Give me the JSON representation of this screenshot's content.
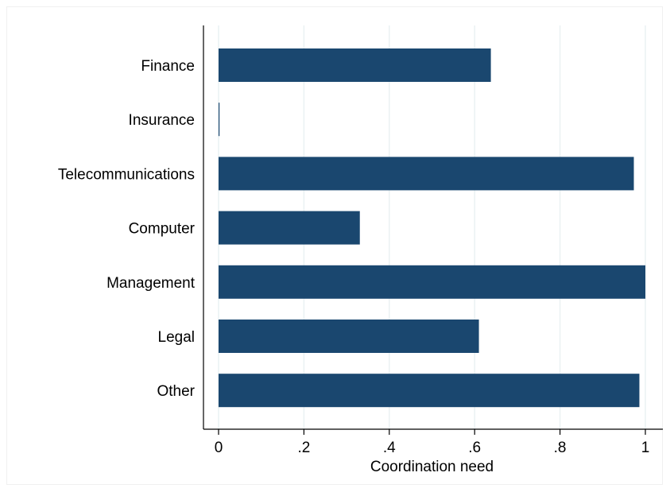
{
  "chart_data": {
    "type": "bar",
    "orientation": "horizontal",
    "title": "",
    "xlabel": "Coordination need",
    "ylabel": "",
    "categories": [
      "Finance",
      "Insurance",
      "Telecommunications",
      "Computer",
      "Management",
      "Legal",
      "Other"
    ],
    "values": [
      0.638,
      0.002,
      0.973,
      0.331,
      1.0,
      0.61,
      0.986
    ],
    "xlim": [
      0,
      1
    ],
    "xticks": [
      0,
      0.2,
      0.4,
      0.6,
      0.8,
      1
    ],
    "xtick_labels": [
      "0",
      ".2",
      ".4",
      ".6",
      ".8",
      "1"
    ],
    "grid": "vertical",
    "legend": "none",
    "colors": {
      "bar": "#1a476f",
      "grid": "#eaf2f3",
      "axis": "#000000"
    }
  }
}
